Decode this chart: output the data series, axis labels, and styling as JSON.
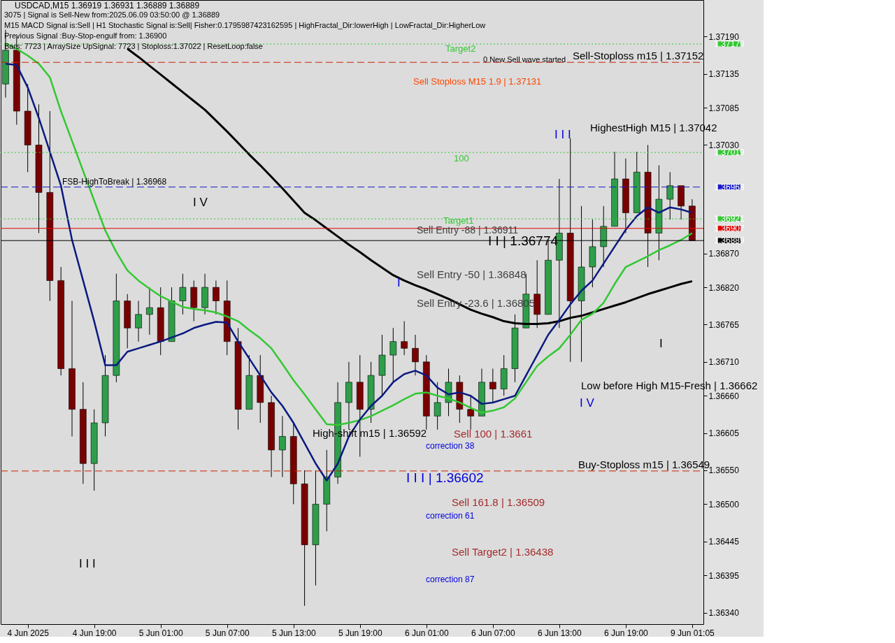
{
  "chart_data": {
    "type": "candlestick",
    "title": "USDCAD,M15  1.36919 1.36931 1.36889 1.36889",
    "categories": [
      null,
      null,
      "4 Jun 2025",
      null,
      null,
      null,
      null,
      null,
      "4 Jun 19:00",
      null,
      null,
      null,
      null,
      null,
      "5 Jun 01:00",
      null,
      null,
      null,
      null,
      null,
      "5 Jun 07:00",
      null,
      null,
      null,
      null,
      null,
      "5 Jun 13:00",
      null,
      null,
      null,
      null,
      null,
      "5 Jun 19:00",
      null,
      null,
      null,
      null,
      null,
      "6 Jun 01:00",
      null,
      null,
      null,
      null,
      null,
      "6 Jun 07:00",
      null,
      null,
      null,
      null,
      null,
      "6 Jun 13:00",
      null,
      null,
      null,
      null,
      null,
      "6 Jun 19:00",
      null,
      null,
      null,
      null,
      null,
      "9 Jun 01:05"
    ],
    "ohlc": [
      [
        1.3712,
        1.372,
        1.371,
        1.3717
      ],
      [
        1.3717,
        1.3719,
        1.3706,
        1.3708
      ],
      [
        1.3708,
        1.3712,
        1.3699,
        1.3703
      ],
      [
        1.3703,
        1.3709,
        1.369,
        1.3696
      ],
      [
        1.3696,
        1.3708,
        1.368,
        1.3683
      ],
      [
        1.3683,
        1.3685,
        1.3669,
        1.367
      ],
      [
        1.367,
        1.368,
        1.366,
        1.3664
      ],
      [
        1.3664,
        1.3668,
        1.3653,
        1.3656
      ],
      [
        1.3656,
        1.3664,
        1.3652,
        1.3662
      ],
      [
        1.3662,
        1.3672,
        1.366,
        1.3669
      ],
      [
        1.3669,
        1.3684,
        1.3668,
        1.368
      ],
      [
        1.368,
        1.3681,
        1.3673,
        1.3676
      ],
      [
        1.3676,
        1.368,
        1.3674,
        1.3678
      ],
      [
        1.3678,
        1.3682,
        1.3675,
        1.3679
      ],
      [
        1.3679,
        1.3682,
        1.3672,
        1.3674
      ],
      [
        1.3674,
        1.3682,
        1.3674,
        1.368
      ],
      [
        1.368,
        1.3684,
        1.3678,
        1.3682
      ],
      [
        1.3682,
        1.3683,
        1.3677,
        1.3679
      ],
      [
        1.3679,
        1.3684,
        1.3678,
        1.3682
      ],
      [
        1.3682,
        1.3683,
        1.3678,
        1.368
      ],
      [
        1.368,
        1.3683,
        1.3672,
        1.3674
      ],
      [
        1.3674,
        1.3676,
        1.3661,
        1.3664
      ],
      [
        1.3664,
        1.3672,
        1.3664,
        1.3669
      ],
      [
        1.3669,
        1.3672,
        1.3662,
        1.3665
      ],
      [
        1.3665,
        1.3666,
        1.3654,
        1.3658
      ],
      [
        1.3658,
        1.3663,
        1.3654,
        1.366
      ],
      [
        1.366,
        1.3662,
        1.365,
        1.3653
      ],
      [
        1.3653,
        1.3655,
        1.3635,
        1.3644
      ],
      [
        1.3644,
        1.3655,
        1.3638,
        1.365
      ],
      [
        1.365,
        1.3658,
        1.3646,
        1.3654
      ],
      [
        1.3654,
        1.3668,
        1.3653,
        1.3665
      ],
      [
        1.3665,
        1.3671,
        1.3661,
        1.3668
      ],
      [
        1.3668,
        1.3672,
        1.3657,
        1.3664
      ],
      [
        1.3664,
        1.3671,
        1.3662,
        1.3669
      ],
      [
        1.3669,
        1.3675,
        1.3666,
        1.3672
      ],
      [
        1.3672,
        1.3676,
        1.3668,
        1.3674
      ],
      [
        1.3674,
        1.3677,
        1.3672,
        1.3673
      ],
      [
        1.3673,
        1.3675,
        1.3669,
        1.3671
      ],
      [
        1.3671,
        1.3672,
        1.3661,
        1.3663
      ],
      [
        1.3663,
        1.3668,
        1.3661,
        1.3665
      ],
      [
        1.3665,
        1.367,
        1.3663,
        1.3668
      ],
      [
        1.3668,
        1.3669,
        1.3662,
        1.3664
      ],
      [
        1.3664,
        1.3666,
        1.3661,
        1.3663
      ],
      [
        1.3663,
        1.367,
        1.3663,
        1.3668
      ],
      [
        1.3668,
        1.367,
        1.3665,
        1.3667
      ],
      [
        1.3667,
        1.3672,
        1.3666,
        1.367
      ],
      [
        1.367,
        1.3678,
        1.3668,
        1.3676
      ],
      [
        1.3676,
        1.3684,
        1.3676,
        1.3681
      ],
      [
        1.3681,
        1.3686,
        1.3676,
        1.3678
      ],
      [
        1.3678,
        1.3689,
        1.3678,
        1.3686
      ],
      [
        1.3686,
        1.3698,
        1.3676,
        1.369
      ],
      [
        1.369,
        1.3704,
        1.3671,
        1.368
      ],
      [
        1.368,
        1.3694,
        1.3671,
        1.3685
      ],
      [
        1.3685,
        1.3692,
        1.3682,
        1.3688
      ],
      [
        1.3688,
        1.3694,
        1.3685,
        1.3691
      ],
      [
        1.3691,
        1.3702,
        1.3691,
        1.3698
      ],
      [
        1.3698,
        1.3701,
        1.369,
        1.3693
      ],
      [
        1.3693,
        1.3702,
        1.3693,
        1.3699
      ],
      [
        1.3699,
        1.3703,
        1.3685,
        1.369
      ],
      [
        1.369,
        1.37,
        1.3686,
        1.3695
      ],
      [
        1.3695,
        1.3699,
        1.3692,
        1.3697
      ],
      [
        1.3697,
        1.3697,
        1.3692,
        1.3694
      ],
      [
        1.3694,
        1.3695,
        1.36889,
        1.36889
      ]
    ],
    "colors": [
      "#2e9e4a",
      "#7a0000",
      "#7a0000",
      "#7a0000",
      "#7a0000",
      "#7a0000",
      "#7a0000",
      "#7a0000",
      "#2e9e4a",
      "#2e9e4a",
      "#2e9e4a",
      "#7a0000",
      "#2e9e4a",
      "#2e9e4a",
      "#7a0000",
      "#2e9e4a",
      "#2e9e4a",
      "#7a0000",
      "#2e9e4a",
      "#7a0000",
      "#7a0000",
      "#7a0000",
      "#2e9e4a",
      "#7a0000",
      "#7a0000",
      "#2e9e4a",
      "#7a0000",
      "#7a0000",
      "#2e9e4a",
      "#2e9e4a",
      "#2e9e4a",
      "#2e9e4a",
      "#7a0000",
      "#2e9e4a",
      "#2e9e4a",
      "#2e9e4a",
      "#7a0000",
      "#7a0000",
      "#7a0000",
      "#2e9e4a",
      "#2e9e4a",
      "#7a0000",
      "#7a0000",
      "#2e9e4a",
      "#7a0000",
      "#2e9e4a",
      "#2e9e4a",
      "#2e9e4a",
      "#7a0000",
      "#2e9e4a",
      "#2e9e4a",
      "#7a0000",
      "#2e9e4a",
      "#2e9e4a",
      "#2e9e4a",
      "#2e9e4a",
      "#7a0000",
      "#2e9e4a",
      "#7a0000",
      "#2e9e4a",
      "#2e9e4a",
      "#7a0000",
      "#7a0000"
    ],
    "series": [
      {
        "type": "line",
        "color": "#000000",
        "values": [
          null,
          null,
          null,
          null,
          null,
          null,
          null,
          null,
          null,
          null,
          null,
          1.37172,
          1.3716,
          1.37147,
          1.37134,
          1.37121,
          1.37108,
          1.37095,
          1.37082,
          1.37066,
          1.3705,
          1.37033,
          1.37016,
          1.37,
          1.36983,
          1.36966,
          1.36948,
          1.3693,
          1.36919,
          1.36907,
          1.36895,
          1.36883,
          1.36872,
          1.3686,
          1.36849,
          1.36838,
          1.3683,
          1.36823,
          1.36817,
          1.3681,
          1.36803,
          1.36795,
          1.36787,
          1.36781,
          1.36776,
          1.3677,
          1.36767,
          1.36766,
          1.36766,
          1.36767,
          1.3677,
          1.36775,
          1.36778,
          1.36783,
          1.36788,
          1.36793,
          1.36798,
          1.36804,
          1.3681,
          1.36815,
          1.3682,
          1.36825,
          1.36829
        ]
      },
      {
        "type": "line",
        "color": "#32c832",
        "values": [
          1.3718,
          1.37172,
          1.37162,
          1.3715,
          1.3713,
          1.3708,
          1.37036,
          1.36992,
          1.36948,
          1.36904,
          1.36872,
          1.36845,
          1.3683,
          1.36818,
          1.36807,
          1.36799,
          1.36791,
          1.36788,
          1.36786,
          1.36783,
          1.36777,
          1.3677,
          1.36757,
          1.36745,
          1.3673,
          1.36707,
          1.36683,
          1.36662,
          1.3664,
          1.36618,
          1.36617,
          1.3662,
          1.36624,
          1.3663,
          1.36638,
          1.36646,
          1.36655,
          1.36663,
          1.36665,
          1.3666,
          1.36656,
          1.3665,
          1.36642,
          1.36635,
          1.36638,
          1.36643,
          1.36656,
          1.3668,
          1.36704,
          1.36718,
          1.3673,
          1.3675,
          1.36772,
          1.36781,
          1.36797,
          1.36825,
          1.3685,
          1.36858,
          1.36866,
          1.36875,
          1.36882,
          1.3689,
          1.369
        ]
      },
      {
        "type": "line",
        "color": "#0a1a80",
        "values": [
          1.3715,
          1.37148,
          1.37115,
          1.3707,
          1.3702,
          1.3697,
          1.3689,
          1.3683,
          1.3677,
          1.36705,
          1.36705,
          1.36725,
          1.3673,
          1.36735,
          1.3674,
          1.36746,
          1.36752,
          1.3676,
          1.36765,
          1.36769,
          1.36768,
          1.3674,
          1.36715,
          1.3669,
          1.36665,
          1.36645,
          1.3662,
          1.3659,
          1.3656,
          1.36535,
          1.3656,
          1.366,
          1.36625,
          1.36645,
          1.3666,
          1.3668,
          1.36692,
          1.36697,
          1.3669,
          1.36672,
          1.36662,
          1.36665,
          1.3666,
          1.36648,
          1.3665,
          1.36655,
          1.3666,
          1.3669,
          1.3672,
          1.3675,
          1.36772,
          1.36795,
          1.36815,
          1.3683,
          1.36855,
          1.3688,
          1.36905,
          1.36925,
          1.36938,
          1.3693,
          1.36938,
          1.36935,
          1.3693
        ]
      }
    ],
    "ylim": [
      1.36323,
      1.37244
    ],
    "yticks": [
      {
        "value": 1.3719,
        "label": "1.37190"
      },
      1.37135,
      1.37085,
      {
        "value": 1.3703,
        "label": "1.37030"
      },
      {
        "value": 1.3687,
        "label": "1.36870"
      },
      {
        "value": 1.3682,
        "label": "1.36820"
      },
      1.36765,
      {
        "value": 1.3671,
        "label": "1.36710"
      },
      {
        "value": 1.3666,
        "label": "1.36660"
      },
      1.36605,
      {
        "value": 1.3655,
        "label": "1.36550"
      },
      {
        "value": 1.365,
        "label": "1.36500"
      },
      1.36445,
      1.36395,
      {
        "value": 1.3634,
        "label": "1.36340"
      }
    ],
    "ref_lines": [
      {
        "axis": "y",
        "value": 1.37179,
        "label": "1.37179",
        "color": "#32c832",
        "line_style": "dotted"
      },
      {
        "axis": "y",
        "value": 1.37152,
        "label": null,
        "color": "#cc2200",
        "line_style": "dashed"
      },
      {
        "axis": "y",
        "value": 1.37019,
        "label": "1.37019",
        "color": "#32c832",
        "line_style": "dotted"
      },
      {
        "axis": "y",
        "value": 1.36968,
        "label": "1.36968",
        "color": "#1a1acc",
        "line_style": "dashed"
      },
      {
        "axis": "y",
        "value": 1.36921,
        "label": "1.36921",
        "color": "#32c832",
        "line_style": "dotted"
      },
      {
        "axis": "y",
        "value": 1.36907,
        "label": "1.36907",
        "color": "#e00000",
        "line_style": "solid"
      },
      {
        "axis": "y",
        "value": 1.36889,
        "label": "1.36889",
        "color": "#000000",
        "line_style": "solid"
      },
      {
        "axis": "y",
        "value": 1.36549,
        "label": null,
        "color": "#cc2200",
        "line_style": "dashed"
      }
    ],
    "annotations": [
      "3075 | Signal is Sell-New from:2025.06.09 03:50:00 @ 1.36889",
      "M15 MACD Signal is:Sell | H1 Stochastic Signal is:Sell| Fisher:0.1795987423162595 | HighFractal_Dir:lowerHigh | LowFractal_Dir:HigherLow",
      "Previous Signal :Buy-Stop-engulf from: 1.36900",
      "Bars: 7723 | ArraySize UpSignal: 7723 | Stoploss:1.37022 | ResetLoop:false",
      {
        "text": "FSB-HighToBreak | 1.36968",
        "y": 1.36968
      },
      {
        "text": "Sell-Stoploss m15 | 1.37152",
        "y": 1.37152
      },
      "HighestHigh   M15 | 1.37042",
      "Low before High   M15-Fresh | 1.36662",
      {
        "text": "Buy-Stoploss m15 | 1.36549",
        "y": 1.36549
      },
      "High-shift m15 | 1.36592",
      "Sell Entry -88 | 1.36911",
      "Sell Entry -50 | 1.36848",
      "Sell Entry -23.6 | 1.36805",
      "Sell Stoploss M15 1.9 | 1.37131",
      "Sell 100 | 1.3661",
      "Sell 161.8 | 1.36509",
      "Sell Target2 | 1.36438",
      "I I | 1.36774",
      "I I I | 1.36602",
      "I V",
      "I I I",
      "I",
      "I I I",
      "I V",
      "I",
      "0 New Sell wave started",
      "Target2",
      "Target1",
      "100",
      "correction 38",
      "correction 61",
      "correction 87"
    ]
  }
}
